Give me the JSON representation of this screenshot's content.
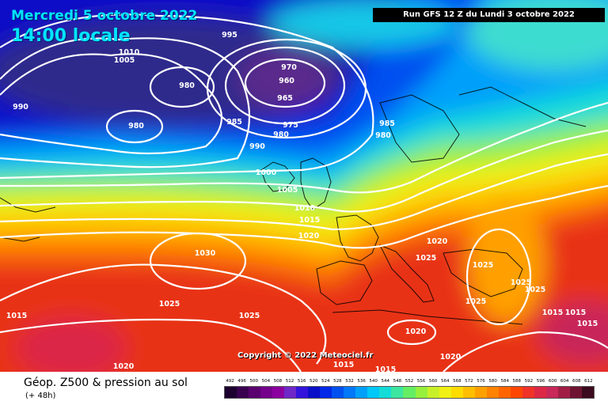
{
  "header": {
    "date": "Mercredi 5 octobre 2022",
    "time": "14:00 locale",
    "run": "Run GFS 12 Z du Lundi 3 octobre 2022"
  },
  "copyright": "Copyright © 2022 Meteociel.fr",
  "legend": {
    "title": "Géop. Z500 & pression au sol",
    "subtitle": "(+ 48h)",
    "values": [
      "492",
      "496",
      "500",
      "504",
      "508",
      "512",
      "516",
      "520",
      "524",
      "528",
      "532",
      "536",
      "540",
      "544",
      "548",
      "552",
      "556",
      "560",
      "564",
      "568",
      "572",
      "576",
      "580",
      "584",
      "588",
      "592",
      "596",
      "600",
      "604",
      "608",
      "612"
    ],
    "colors": [
      "#1e0030",
      "#3a0050",
      "#5a0070",
      "#74008c",
      "#8c00a0",
      "#6e28c8",
      "#3214dc",
      "#0a10c8",
      "#0028e6",
      "#0050f0",
      "#0078f8",
      "#00a0fa",
      "#00c8f8",
      "#14dcd8",
      "#3ce6a0",
      "#64ee64",
      "#96f03c",
      "#c8f028",
      "#f0f014",
      "#ffdc00",
      "#ffbe00",
      "#ffa000",
      "#ff8200",
      "#ff6400",
      "#ff4600",
      "#f03228",
      "#dc2846",
      "#c8285a",
      "#a01e46",
      "#6e1432",
      "#3c0a1e"
    ]
  },
  "isobar_labels": [
    {
      "text": "995"
    },
    {
      "text": "1010"
    },
    {
      "text": "1005"
    },
    {
      "text": "980"
    },
    {
      "text": "990"
    },
    {
      "text": "980"
    },
    {
      "text": "985"
    },
    {
      "text": "970"
    },
    {
      "text": "960"
    },
    {
      "text": "965"
    },
    {
      "text": "975"
    },
    {
      "text": "980"
    },
    {
      "text": "990"
    },
    {
      "text": "985"
    },
    {
      "text": "980"
    },
    {
      "text": "1000"
    },
    {
      "text": "1005"
    },
    {
      "text": "1010"
    },
    {
      "text": "1015"
    },
    {
      "text": "1020"
    },
    {
      "text": "1030"
    },
    {
      "text": "1025"
    },
    {
      "text": "1025"
    },
    {
      "text": "1015"
    },
    {
      "text": "1020"
    },
    {
      "text": "1020"
    },
    {
      "text": "1025"
    },
    {
      "text": "1025"
    },
    {
      "text": "1025"
    },
    {
      "text": "1025"
    },
    {
      "text": "1025"
    },
    {
      "text": "1015"
    },
    {
      "text": "1020"
    },
    {
      "text": "1020"
    },
    {
      "text": "1015"
    },
    {
      "text": "1015"
    },
    {
      "text": "1015"
    },
    {
      "text": "1015"
    }
  ]
}
